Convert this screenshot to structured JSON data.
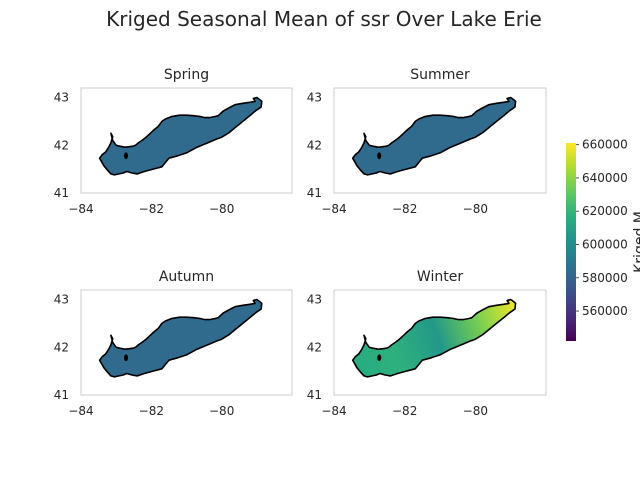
{
  "chart_data": {
    "type": "heatmap",
    "title": "Kriged Seasonal Mean of ssr Over Lake Erie",
    "xlim": [
      -84,
      -78
    ],
    "ylim": [
      41,
      43.2
    ],
    "x_ticks": [
      -84,
      -82,
      -80
    ],
    "y_ticks": [
      41,
      42,
      43
    ],
    "panels": [
      {
        "name": "Spring",
        "uniform_value": 583000
      },
      {
        "name": "Summer",
        "uniform_value": 583000
      },
      {
        "name": "Autumn",
        "uniform_value": 583000
      },
      {
        "name": "Winter",
        "west_value": 615000,
        "middle_value": 605000,
        "east_value": 658000
      }
    ],
    "colorbar": {
      "colormap": "viridis",
      "min": 542000,
      "max": 661000,
      "ticks": [
        560000,
        580000,
        600000,
        620000,
        640000,
        660000
      ],
      "label": "Kriged M"
    },
    "grid": false
  }
}
